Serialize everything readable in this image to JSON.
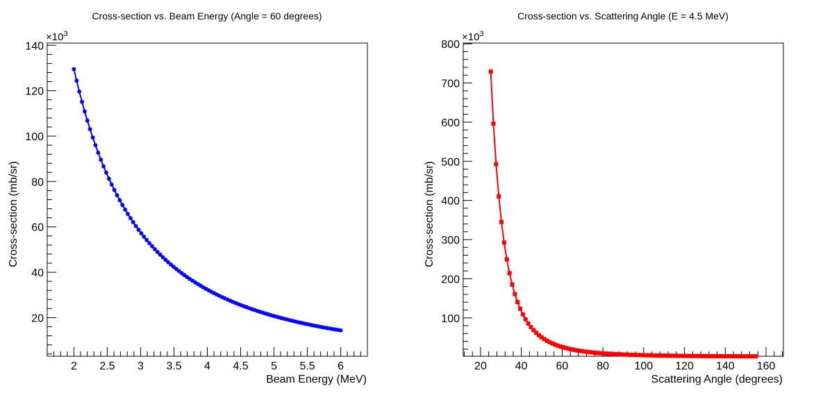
{
  "colors": {
    "left_series": "#0000ff",
    "right_series": "#ff0000",
    "axes": "#000000",
    "background": "#ffffff"
  },
  "chart_data": [
    {
      "type": "line",
      "marker": "star",
      "title": "Cross-section vs. Beam Energy (Angle = 60 degrees)",
      "xlabel": "Beam Energy (MeV)",
      "ylabel": "Cross-section (mb/sr)",
      "y_multiplier": "×10",
      "y_multiplier_exp": "3",
      "xlim": [
        1.6,
        6.4
      ],
      "ylim": [
        3,
        141
      ],
      "x_major_ticks": [
        2,
        2.5,
        3,
        3.5,
        4,
        4.5,
        5,
        5.5,
        6
      ],
      "x_tick_labels": [
        "2",
        "2.5",
        "3",
        "3.5",
        "4",
        "4.5",
        "5",
        "5.5",
        "6"
      ],
      "y_major_ticks": [
        20,
        40,
        60,
        80,
        100,
        120,
        140
      ],
      "y_tick_labels": [
        "20",
        "40",
        "60",
        "80",
        "100",
        "120",
        "140"
      ],
      "grid": false,
      "legend": "none",
      "x_range": [
        2.0,
        6.0
      ],
      "n_points": 100,
      "model": "y = 129.5 * (2/E)^2 (values in units of 10^3 mb/sr)"
    },
    {
      "type": "line",
      "marker": "square",
      "title": "Cross-section vs. Scattering Angle (E = 4.5 MeV)",
      "xlabel": "Scattering Angle (degrees)",
      "ylabel": "Cross-section (mb/sr)",
      "y_multiplier": "×10",
      "y_multiplier_exp": "3",
      "xlim": [
        11.5,
        168.5
      ],
      "ylim": [
        2,
        802
      ],
      "x_major_ticks": [
        20,
        40,
        60,
        80,
        100,
        120,
        140,
        160
      ],
      "x_tick_labels": [
        "20",
        "40",
        "60",
        "80",
        "100",
        "120",
        "140",
        "160"
      ],
      "y_major_ticks": [
        100,
        200,
        300,
        400,
        500,
        600,
        700,
        800
      ],
      "y_tick_labels": [
        "100",
        "200",
        "300",
        "400",
        "500",
        "600",
        "700",
        "800"
      ],
      "grid": false,
      "legend": "none",
      "x_range": [
        25,
        155
      ],
      "n_points": 100,
      "model": "Rutherford: y = 729 * (sin(12.5°)/sin(θ/2))^4 (values in units of 10^3 mb/sr)"
    }
  ]
}
